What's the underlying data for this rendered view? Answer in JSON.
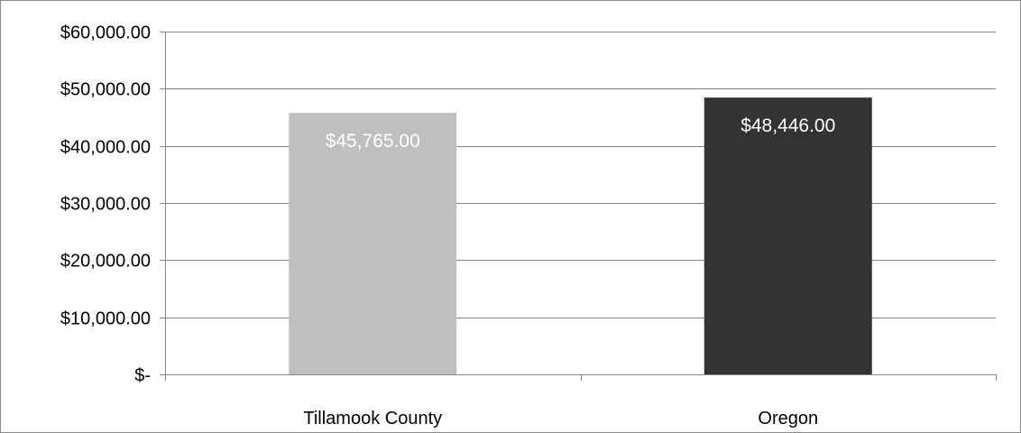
{
  "chart_data": {
    "type": "bar",
    "title": "",
    "xlabel": "",
    "ylabel": "",
    "categories": [
      "Tillamook County",
      "Oregon"
    ],
    "values": [
      45765,
      48446
    ],
    "data_labels": [
      "$45,765.00",
      "$48,446.00"
    ],
    "bar_colors": [
      "#bfbfbf",
      "#333333"
    ],
    "ylim": [
      0,
      60000
    ],
    "yticks": [
      0,
      10000,
      20000,
      30000,
      40000,
      50000,
      60000
    ],
    "ytick_labels": [
      "$-",
      "$10,000.00",
      "$20,000.00",
      "$30,000.00",
      "$40,000.00",
      "$50,000.00",
      "$60,000.00"
    ],
    "grid": true,
    "legend": "none",
    "gridline_color": "#868686"
  }
}
